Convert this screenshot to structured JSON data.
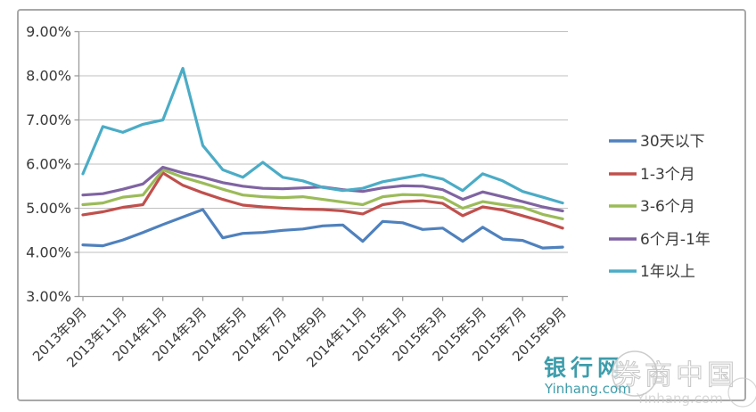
{
  "watermark": {
    "site_name": "银行网",
    "site_url": "Yinhang.com",
    "overlay_text": "券商中国",
    "overlay_url": "Yinhang.com",
    "site_color": "#3e9dab",
    "overlay_color": "#c4c4c4"
  },
  "frame": {
    "border_color": "#a8a8a8",
    "gridline_color": "#bfbfbf",
    "axis_color": "#9b9b9b",
    "label_color": "#3a3a3a"
  },
  "chart_data": {
    "type": "line",
    "title": "",
    "xlabel": "",
    "ylabel": "",
    "ylim": [
      3,
      9
    ],
    "grid": true,
    "legend_position": "right",
    "y_axis": {
      "labels": [
        "9.00%",
        "8.00%",
        "7.00%",
        "6.00%",
        "5.00%",
        "4.00%",
        "3.00%"
      ],
      "min": 3,
      "max": 9,
      "step": 1
    },
    "x_tick_every": 2,
    "categories": [
      "2013年9月",
      "2013年10月",
      "2013年11月",
      "2013年12月",
      "2014年1月",
      "2014年2月",
      "2014年3月",
      "2014年4月",
      "2014年5月",
      "2014年6月",
      "2014年7月",
      "2014年8月",
      "2014年9月",
      "2014年10月",
      "2014年11月",
      "2014年12月",
      "2015年1月",
      "2015年2月",
      "2015年3月",
      "2015年4月",
      "2015年5月",
      "2015年6月",
      "2015年7月",
      "2015年8月",
      "2015年9月"
    ],
    "series": [
      {
        "name": "30天以下",
        "color": "#4f81bd",
        "values": [
          4.17,
          4.15,
          4.28,
          4.45,
          4.63,
          4.8,
          4.97,
          4.33,
          4.43,
          4.45,
          4.5,
          4.53,
          4.6,
          4.62,
          4.25,
          4.7,
          4.67,
          4.52,
          4.55,
          4.25,
          4.57,
          4.3,
          4.27,
          4.1,
          4.12
        ]
      },
      {
        "name": "1-3个月",
        "color": "#c0504d",
        "values": [
          4.85,
          4.92,
          5.02,
          5.08,
          5.8,
          5.52,
          5.35,
          5.2,
          5.07,
          5.03,
          5.0,
          4.98,
          4.97,
          4.94,
          4.87,
          5.08,
          5.15,
          5.17,
          5.11,
          4.83,
          5.03,
          4.96,
          4.83,
          4.7,
          4.55
        ]
      },
      {
        "name": "3-6个月",
        "color": "#9bbb59",
        "values": [
          5.08,
          5.12,
          5.25,
          5.3,
          5.87,
          5.7,
          5.57,
          5.43,
          5.3,
          5.26,
          5.24,
          5.26,
          5.2,
          5.14,
          5.08,
          5.26,
          5.31,
          5.3,
          5.24,
          5.0,
          5.15,
          5.08,
          5.02,
          4.86,
          4.76
        ]
      },
      {
        "name": "6个月-1年",
        "color": "#8064a2",
        "values": [
          5.3,
          5.33,
          5.43,
          5.55,
          5.93,
          5.8,
          5.7,
          5.58,
          5.5,
          5.45,
          5.44,
          5.46,
          5.48,
          5.42,
          5.38,
          5.46,
          5.51,
          5.5,
          5.42,
          5.2,
          5.37,
          5.26,
          5.15,
          5.03,
          4.94
        ]
      },
      {
        "name": "1年以上",
        "color": "#4bacc6",
        "values": [
          5.78,
          6.85,
          6.72,
          6.9,
          7.0,
          8.17,
          6.42,
          5.87,
          5.7,
          6.04,
          5.7,
          5.62,
          5.47,
          5.4,
          5.45,
          5.6,
          5.68,
          5.76,
          5.66,
          5.4,
          5.78,
          5.62,
          5.38,
          5.25,
          5.12
        ]
      }
    ]
  }
}
